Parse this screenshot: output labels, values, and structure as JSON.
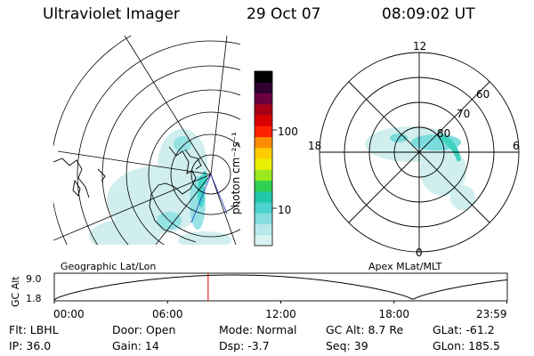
{
  "header": {
    "instrument": "Ultraviolet Imager",
    "date": "29 Oct 07",
    "time": "08:09:02 UT"
  },
  "geo_map": {
    "label": "Geographic Lat/Lon"
  },
  "polar_plot": {
    "label": "Apex MLat/MLT",
    "mlt_labels": [
      "12",
      "18",
      "6",
      "0"
    ],
    "lat_labels": [
      "60",
      "70",
      "80"
    ]
  },
  "colorbar": {
    "unit_label": "photon cm⁻²s⁻¹",
    "ticks": [
      "100",
      "10"
    ],
    "colors": [
      "#d8f2f2",
      "#b8e8ea",
      "#86dde0",
      "#4cd3cf",
      "#20c8a8",
      "#30d050",
      "#9ae81e",
      "#e8f000",
      "#ffcc00",
      "#ff8c00",
      "#ff2200",
      "#d80000",
      "#a80018",
      "#6a0040",
      "#300030",
      "#000000"
    ]
  },
  "altitude_panel": {
    "ylabel": "GC Alt",
    "yticks": [
      "9.0",
      "1.8"
    ],
    "xticks": [
      "00:00",
      "06:00",
      "12:00",
      "18:00",
      "23:59"
    ],
    "marker_time_hours": 8.15,
    "marker_color": "#e00000"
  },
  "status": {
    "filter": "Flt: LBHL",
    "door": "Door: Open",
    "mode": "Mode: Normal",
    "gc_alt": "GC Alt: 8.7 Re",
    "glat": "GLat: -61.2",
    "ip": "IP: 36.0",
    "gain": "Gain: 14",
    "dsp": "Dsp:    -3.7",
    "seq": "Seq: 39",
    "glon": "GLon: 185.5"
  }
}
